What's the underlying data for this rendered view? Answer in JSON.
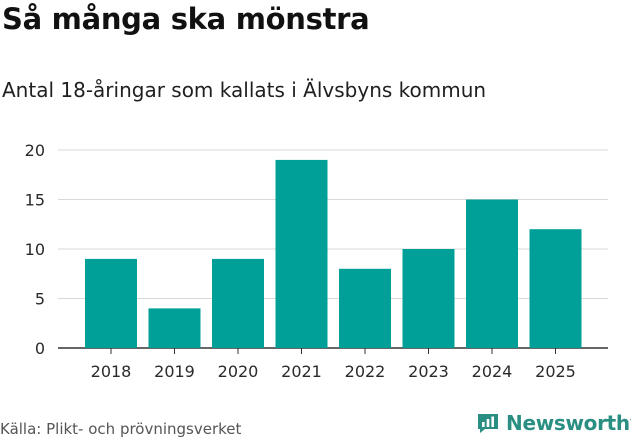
{
  "title": "Så många ska mönstra",
  "subtitle": "Antal 18-åringar som kallats i Älvsbyns kommun",
  "source": "Källa: Plikt- och prövningsverket",
  "brand": {
    "name": "Newsworthy",
    "icon": "newsworthy-logo-icon",
    "color": "#2a8f82"
  },
  "chart_data": {
    "type": "bar",
    "categories": [
      "2018",
      "2019",
      "2020",
      "2021",
      "2022",
      "2023",
      "2024",
      "2025"
    ],
    "values": [
      9,
      4,
      9,
      19,
      8,
      10,
      15,
      12
    ],
    "ylim": [
      0,
      20
    ],
    "yticks": [
      0,
      5,
      10,
      15,
      20
    ],
    "bar_color": "#00a098",
    "grid": true,
    "legend": "none"
  }
}
